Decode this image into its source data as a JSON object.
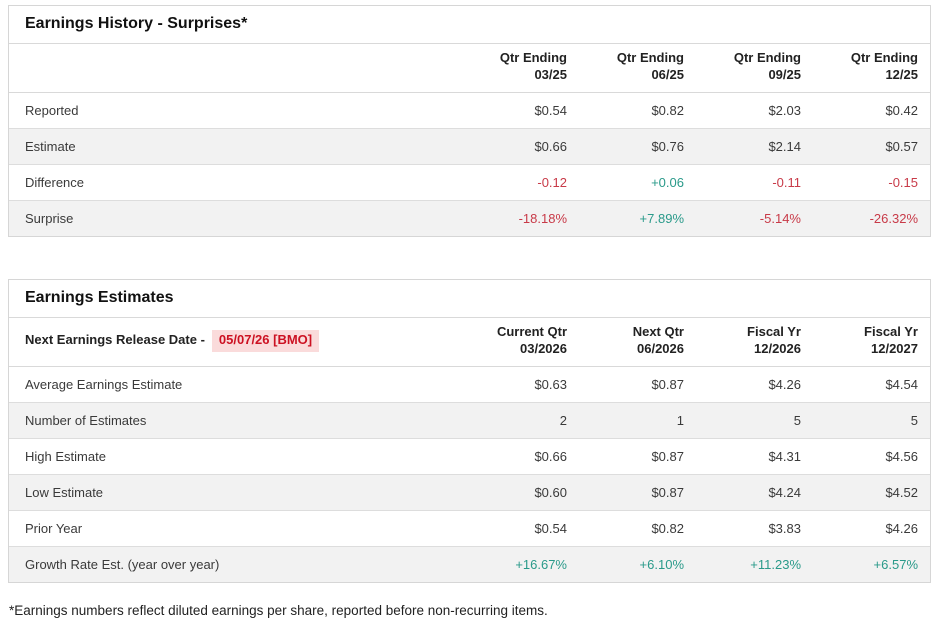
{
  "colors": {
    "positive_value": "#2a9a8a",
    "negative_value": "#c83a48",
    "release_date_text": "#cc1122",
    "release_date_background": "#fadbdb",
    "row_stripe": "#f2f2f2",
    "table_border": "#d6d6d6"
  },
  "history": {
    "title": "Earnings History - Surprises*",
    "columns": [
      {
        "line1": "Qtr Ending",
        "line2": "03/25"
      },
      {
        "line1": "Qtr Ending",
        "line2": "06/25"
      },
      {
        "line1": "Qtr Ending",
        "line2": "09/25"
      },
      {
        "line1": "Qtr Ending",
        "line2": "12/25"
      }
    ],
    "rows": [
      {
        "label": "Reported",
        "cells": [
          {
            "value": "$0.54"
          },
          {
            "value": "$0.82"
          },
          {
            "value": "$2.03"
          },
          {
            "value": "$0.42"
          }
        ]
      },
      {
        "label": "Estimate",
        "cells": [
          {
            "value": "$0.66"
          },
          {
            "value": "$0.76"
          },
          {
            "value": "$2.14"
          },
          {
            "value": "$0.57"
          }
        ]
      },
      {
        "label": "Difference",
        "cells": [
          {
            "value": "-0.12",
            "tone": "neg"
          },
          {
            "value": "+0.06",
            "tone": "pos"
          },
          {
            "value": "-0.11",
            "tone": "neg"
          },
          {
            "value": "-0.15",
            "tone": "neg"
          }
        ]
      },
      {
        "label": "Surprise",
        "cells": [
          {
            "value": "-18.18%",
            "tone": "neg"
          },
          {
            "value": "+7.89%",
            "tone": "pos"
          },
          {
            "value": "-5.14%",
            "tone": "neg"
          },
          {
            "value": "-26.32%",
            "tone": "neg"
          }
        ]
      }
    ]
  },
  "estimates": {
    "title": "Earnings Estimates",
    "release_label": "Next Earnings Release Date -",
    "release_date": "05/07/26 [BMO]",
    "columns": [
      {
        "line1": "Current Qtr",
        "line2": "03/2026"
      },
      {
        "line1": "Next Qtr",
        "line2": "06/2026"
      },
      {
        "line1": "Fiscal Yr",
        "line2": "12/2026"
      },
      {
        "line1": "Fiscal Yr",
        "line2": "12/2027"
      }
    ],
    "rows": [
      {
        "label": "Average Earnings Estimate",
        "cells": [
          {
            "value": "$0.63"
          },
          {
            "value": "$0.87"
          },
          {
            "value": "$4.26"
          },
          {
            "value": "$4.54"
          }
        ]
      },
      {
        "label": "Number of Estimates",
        "cells": [
          {
            "value": "2"
          },
          {
            "value": "1"
          },
          {
            "value": "5"
          },
          {
            "value": "5"
          }
        ]
      },
      {
        "label": "High Estimate",
        "cells": [
          {
            "value": "$0.66"
          },
          {
            "value": "$0.87"
          },
          {
            "value": "$4.31"
          },
          {
            "value": "$4.56"
          }
        ]
      },
      {
        "label": "Low Estimate",
        "cells": [
          {
            "value": "$0.60"
          },
          {
            "value": "$0.87"
          },
          {
            "value": "$4.24"
          },
          {
            "value": "$4.52"
          }
        ]
      },
      {
        "label": "Prior Year",
        "cells": [
          {
            "value": "$0.54"
          },
          {
            "value": "$0.82"
          },
          {
            "value": "$3.83"
          },
          {
            "value": "$4.26"
          }
        ]
      },
      {
        "label": "Growth Rate Est. (year over year)",
        "cells": [
          {
            "value": "+16.67%",
            "tone": "pos"
          },
          {
            "value": "+6.10%",
            "tone": "pos"
          },
          {
            "value": "+11.23%",
            "tone": "pos"
          },
          {
            "value": "+6.57%",
            "tone": "pos"
          }
        ]
      }
    ]
  },
  "footnote": "*Earnings numbers reflect diluted earnings per share, reported before non-recurring items."
}
